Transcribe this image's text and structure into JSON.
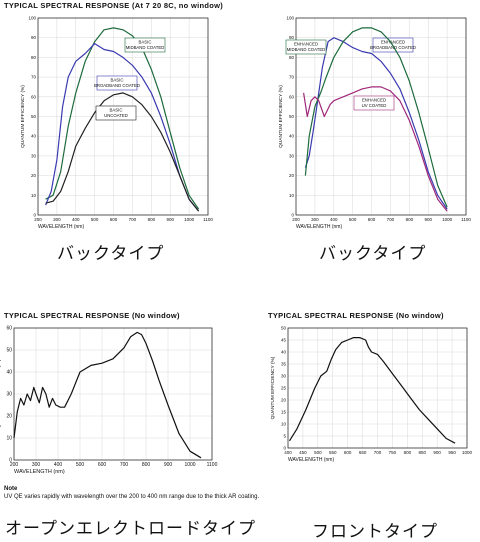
{
  "headings": {
    "top_left": "TYPICAL SPECTRAL RESPONSE (At 7 20 8C, no window)",
    "bottom_left": "TYPICAL SPECTRAL RESPONSE (No window)",
    "bottom_right": "TYPICAL SPECTRAL RESPONSE (No window)"
  },
  "captions": {
    "top_left": "バックタイプ",
    "top_right": "バックタイプ",
    "bottom_left": "オープンエレクトロードタイプ",
    "bottom_right": "フロントタイプ"
  },
  "note": {
    "title": "Note",
    "text": "UV QE varies rapidly with wavelength over the 200 to 400 nm range due to the thick AR coating."
  },
  "chart_data": [
    {
      "id": "chart1",
      "type": "line",
      "xlabel": "WAVELENGTH (nm)",
      "ylabel": "QUANTUM EFFICIENCY (%)",
      "xlim": [
        200,
        1100
      ],
      "ylim": [
        0,
        100
      ],
      "xticks": [
        200,
        300,
        400,
        500,
        600,
        700,
        800,
        900,
        1000,
        1100
      ],
      "yticks": [
        0,
        10,
        20,
        30,
        40,
        50,
        60,
        70,
        80,
        90,
        100
      ],
      "grid": true,
      "series": [
        {
          "name": "BASIC MIDBAND COATED",
          "color": "#1d6b3c",
          "x": [
            240,
            280,
            320,
            360,
            400,
            450,
            500,
            550,
            600,
            650,
            700,
            750,
            800,
            850,
            900,
            950,
            1000,
            1050
          ],
          "y": [
            8,
            10,
            22,
            45,
            62,
            78,
            88,
            94,
            95,
            94,
            91,
            85,
            74,
            60,
            42,
            24,
            10,
            3
          ]
        },
        {
          "name": "BASIC BROADBAND COATED",
          "color": "#3a3ab0",
          "x": [
            240,
            270,
            300,
            330,
            360,
            400,
            450,
            500,
            550,
            600,
            650,
            700,
            750,
            800,
            850,
            900,
            950,
            1000,
            1050
          ],
          "y": [
            5,
            12,
            28,
            55,
            70,
            78,
            82,
            87,
            84,
            83,
            80,
            76,
            70,
            62,
            50,
            36,
            20,
            8,
            2
          ]
        },
        {
          "name": "BASIC UNCOATED",
          "color": "#222222",
          "x": [
            240,
            280,
            320,
            360,
            400,
            450,
            500,
            550,
            600,
            650,
            700,
            750,
            800,
            850,
            900,
            950,
            1000,
            1050
          ],
          "y": [
            6,
            7,
            12,
            22,
            35,
            44,
            52,
            58,
            61,
            62,
            60,
            56,
            50,
            42,
            32,
            20,
            8,
            2
          ]
        }
      ]
    },
    {
      "id": "chart2",
      "type": "line",
      "xlabel": "WAVELENGTH (nm)",
      "ylabel": "QUANTUM EFFICIENCY (%)",
      "xlim": [
        200,
        1100
      ],
      "ylim": [
        0,
        100
      ],
      "xticks": [
        200,
        300,
        400,
        500,
        600,
        700,
        800,
        900,
        1000,
        1100
      ],
      "yticks": [
        0,
        10,
        20,
        30,
        40,
        50,
        60,
        70,
        80,
        90,
        100
      ],
      "grid": true,
      "series": [
        {
          "name": "ENHANCED BROADBAND COATED",
          "color": "#3a3ab0",
          "x": [
            250,
            270,
            290,
            310,
            340,
            370,
            400,
            450,
            500,
            550,
            600,
            650,
            700,
            750,
            800,
            850,
            900,
            950,
            1000
          ],
          "y": [
            24,
            30,
            42,
            55,
            75,
            88,
            90,
            88,
            85,
            83,
            82,
            78,
            72,
            64,
            52,
            38,
            22,
            10,
            3
          ]
        },
        {
          "name": "ENHANCED MIDBAND COATED",
          "color": "#1d6b3c",
          "x": [
            250,
            270,
            300,
            330,
            360,
            400,
            450,
            500,
            550,
            600,
            650,
            700,
            750,
            800,
            850,
            900,
            950,
            1000
          ],
          "y": [
            20,
            40,
            55,
            62,
            70,
            80,
            88,
            93,
            95,
            95,
            93,
            88,
            80,
            68,
            52,
            34,
            15,
            4
          ]
        },
        {
          "name": "ENHANCED UV COATED",
          "color": "#a0287a",
          "x": [
            240,
            260,
            280,
            300,
            320,
            350,
            380,
            400,
            450,
            500,
            550,
            600,
            650,
            700,
            750,
            800,
            850,
            900,
            950,
            1000
          ],
          "y": [
            62,
            50,
            58,
            60,
            58,
            50,
            56,
            58,
            60,
            62,
            64,
            65,
            65,
            63,
            58,
            48,
            35,
            20,
            8,
            2
          ]
        }
      ]
    },
    {
      "id": "chart3",
      "type": "line",
      "xlabel": "WAVELENGTH (nm)",
      "ylabel": "QUANTUM EFFICIENCY (%)",
      "xlim": [
        200,
        1100
      ],
      "ylim": [
        0,
        60
      ],
      "xticks": [
        200,
        300,
        400,
        500,
        600,
        700,
        800,
        900,
        1000,
        1100
      ],
      "yticks": [
        0,
        10,
        20,
        30,
        40,
        50,
        60
      ],
      "grid": true,
      "series": [
        {
          "name": "",
          "color": "#111111",
          "x": [
            200,
            215,
            230,
            245,
            260,
            275,
            290,
            300,
            315,
            330,
            345,
            360,
            375,
            390,
            410,
            430,
            460,
            500,
            550,
            600,
            650,
            700,
            730,
            760,
            780,
            800,
            830,
            860,
            900,
            950,
            1000,
            1050
          ],
          "y": [
            10,
            22,
            28,
            25,
            30,
            27,
            33,
            30,
            26,
            33,
            30,
            24,
            28,
            25,
            24,
            24,
            30,
            40,
            43,
            44,
            46,
            51,
            56,
            58,
            57,
            53,
            45,
            36,
            25,
            12,
            4,
            1
          ]
        }
      ]
    },
    {
      "id": "chart4",
      "type": "line",
      "xlabel": "WAVELENGTH (nm)",
      "ylabel": "QUANTUM EFFICIENCY (%)",
      "xlim": [
        400,
        1000
      ],
      "ylim": [
        0,
        50
      ],
      "xticks": [
        400,
        450,
        500,
        550,
        600,
        650,
        700,
        750,
        800,
        850,
        900,
        950,
        1000
      ],
      "yticks": [
        0,
        5,
        10,
        15,
        20,
        25,
        30,
        35,
        40,
        45,
        50
      ],
      "grid": true,
      "series": [
        {
          "name": "",
          "color": "#111111",
          "x": [
            405,
            430,
            460,
            490,
            510,
            530,
            545,
            560,
            580,
            600,
            620,
            640,
            660,
            670,
            680,
            700,
            720,
            750,
            780,
            810,
            840,
            870,
            900,
            930,
            960
          ],
          "y": [
            3,
            8,
            16,
            25,
            30,
            32,
            37,
            41,
            44,
            45,
            46,
            46,
            45,
            42,
            40,
            39,
            36,
            31,
            26,
            21,
            16,
            12,
            8,
            4,
            2
          ]
        }
      ]
    }
  ]
}
